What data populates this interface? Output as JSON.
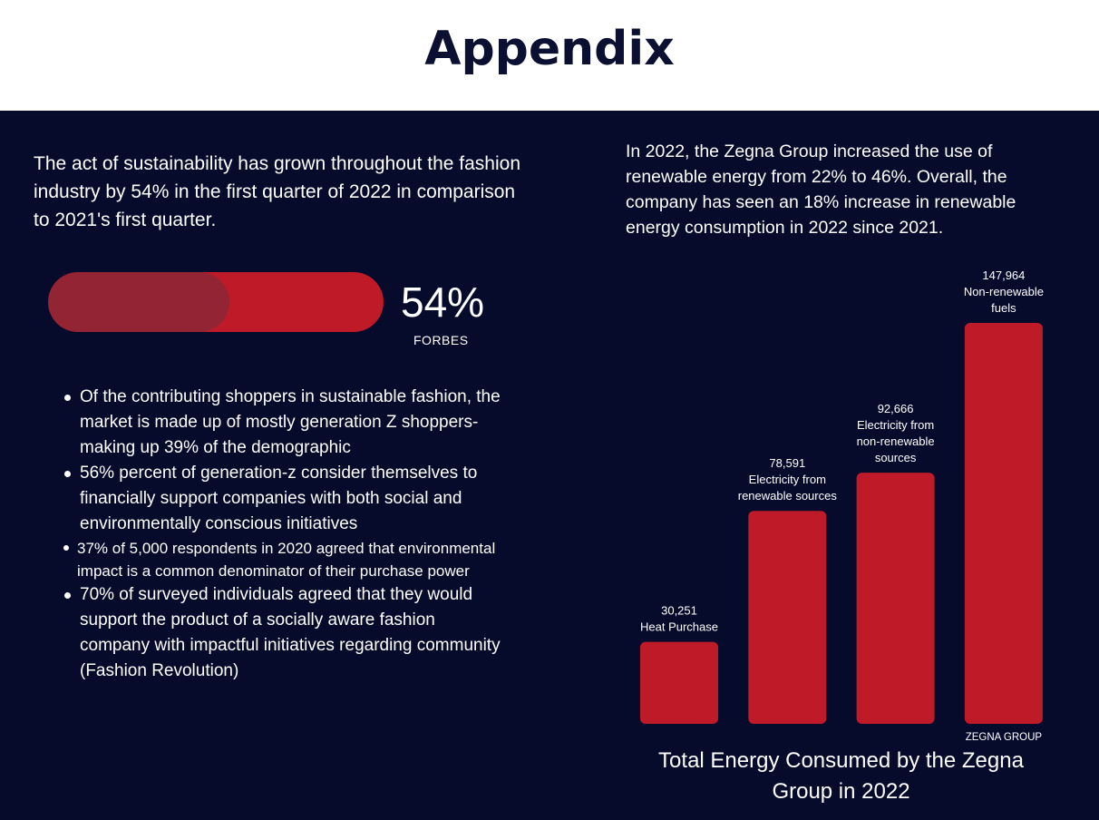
{
  "header": {
    "title": "Appendix"
  },
  "left": {
    "intro": "The act of sustainability has grown throughout the fashion industry by 54% in the first quarter of 2022 in comparison to 2021's first quarter.",
    "progress": {
      "value": 54,
      "label": "54%",
      "source": "FORBES"
    },
    "bullets": [
      {
        "text": "Of the contributing shoppers in sustainable fashion, the market is made up of mostly generation Z shoppers- making up 39% of the demographic"
      },
      {
        "text": "56% percent of generation-z consider themselves to financially support companies with both social and environmentally conscious initiatives"
      },
      {
        "text": "37% of 5,000 respondents in 2020 agreed that environmental impact is a common denominator of their purchase power"
      },
      {
        "text": "70% of surveyed individuals agreed that they would support the product of a socially aware fashion company with impactful initiatives regarding community (Fashion Revolution)"
      }
    ]
  },
  "right": {
    "intro": "In 2022, the Zegna Group increased the use of renewable energy from 22% to 46%. Overall, the company has seen an 18% increase in renewable energy consumption in 2022 since 2021."
  },
  "colors": {
    "background": "#060b2c",
    "header_bg": "#ffffff",
    "title": "#0b1033",
    "bar": "#be1a27",
    "progress_fill": "#932433",
    "text": "#ffffff"
  },
  "chart_data": {
    "type": "bar",
    "title": "Total Energy Consumed by the Zegna Group in 2022",
    "source": "ZEGNA GROUP",
    "categories": [
      [
        "Heat Purchase"
      ],
      [
        "Electricity from",
        "renewable sources"
      ],
      [
        "Electricity from",
        "non-renewable",
        "sources"
      ],
      [
        "Non-renewable",
        "fuels"
      ]
    ],
    "values": [
      30251,
      78591,
      92666,
      147964
    ],
    "value_labels": [
      "30,251",
      "78,591",
      "92,666",
      "147,964"
    ],
    "ylim": [
      0,
      147964
    ],
    "grid": false,
    "legend": "none"
  }
}
